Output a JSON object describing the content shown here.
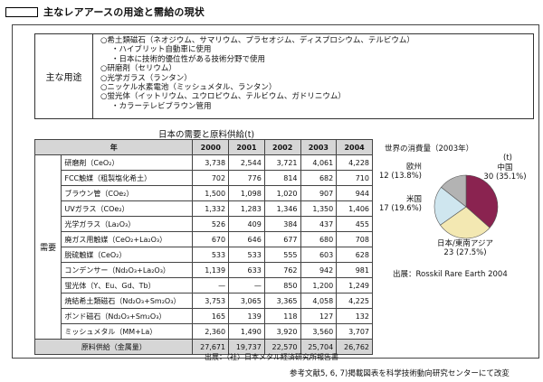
{
  "title": "主なレアアースの用途と需給の現状",
  "uses": {
    "label": "主な用途",
    "lines": [
      {
        "text": "○希土類磁石（ネオジウム、サマリウム、プラセオジム、ディスプロシウム、テルビウム）",
        "sub": false
      },
      {
        "text": "・ハイブリット自動車に使用",
        "sub": true
      },
      {
        "text": "・日本に技術的優位性がある技術分野で使用",
        "sub": true
      },
      {
        "text": "○研磨剤（セリウム）",
        "sub": false
      },
      {
        "text": "○光学ガラス（ランタン）",
        "sub": false
      },
      {
        "text": "○ニッケル水素電池（ミッシュメタル、ランタン）",
        "sub": false
      },
      {
        "text": "○蛍光体（イットリウム、ユウロピウム、テルビウム、ガドリニウム）",
        "sub": false
      },
      {
        "text": "・カラーテレビブラウン管用",
        "sub": true
      }
    ]
  },
  "table": {
    "caption": "日本の需要と原料供給(t)",
    "header_label": "年",
    "years": [
      "2000",
      "2001",
      "2002",
      "2003",
      "2004"
    ],
    "group_label": "需要",
    "rows": [
      {
        "name": "研磨剤（CeO₂）",
        "values": [
          "3,738",
          "2,544",
          "3,721",
          "4,061",
          "4,228"
        ]
      },
      {
        "name": "FCC触媒（粗製塩化希土）",
        "values": [
          "702",
          "776",
          "814",
          "682",
          "710"
        ]
      },
      {
        "name": "ブラウン管（COe₂）",
        "values": [
          "1,500",
          "1,098",
          "1,020",
          "907",
          "944"
        ]
      },
      {
        "name": "UVガラス（COe₂）",
        "values": [
          "1,332",
          "1,283",
          "1,346",
          "1,350",
          "1,406"
        ]
      },
      {
        "name": "光学ガラス（La₂O₃）",
        "values": [
          "526",
          "409",
          "384",
          "437",
          "455"
        ]
      },
      {
        "name": "廃ガス用触媒（CeO₂+La₂O₃）",
        "values": [
          "670",
          "646",
          "677",
          "680",
          "708"
        ]
      },
      {
        "name": "脱硫触媒（CeO₂）",
        "values": [
          "533",
          "533",
          "555",
          "603",
          "628"
        ]
      },
      {
        "name": "コンデンサー（Nd₂O₃+La₂O₃）",
        "values": [
          "1,139",
          "633",
          "762",
          "942",
          "981"
        ]
      },
      {
        "name": "蛍光体（Y、Eu、Gd、Tb）",
        "values": [
          "—",
          "—",
          "850",
          "1,200",
          "1,249"
        ]
      },
      {
        "name": "焼結希土類磁石（Nd₂O₃+Sm₂O₃）",
        "values": [
          "3,753",
          "3,065",
          "3,365",
          "4,058",
          "4,225"
        ]
      },
      {
        "name": "ボンド磁石（Nd₂O₃+Sm₂O₃）",
        "values": [
          "165",
          "139",
          "118",
          "127",
          "132"
        ]
      },
      {
        "name": "ミッシュメタル（MM+La）",
        "values": [
          "2,360",
          "1,490",
          "3,920",
          "3,560",
          "3,707"
        ]
      }
    ],
    "total": {
      "name": "原料供給（金属量）",
      "values": [
        "27,671",
        "19,737",
        "22,570",
        "25,704",
        "26,762"
      ]
    },
    "source": "出展：（社）日本メタル経済研究所報告書"
  },
  "chart_data": {
    "type": "pie",
    "title": "世界の消費量（2003年）",
    "unit": "(t)",
    "slices": [
      {
        "name": "中国",
        "value": 30,
        "percent": 35.1,
        "label_value": "30 (35.1%)",
        "color": "#8a2350"
      },
      {
        "name": "日本/東南アジア",
        "value": 23,
        "percent": 27.5,
        "label_value": "23 (27.5%)",
        "color": "#f3e8b2"
      },
      {
        "name": "米国",
        "value": 17,
        "percent": 19.6,
        "label_value": "17 (19.6%)",
        "color": "#cfe6ef"
      },
      {
        "name": "欧州",
        "value": 12,
        "percent": 13.8,
        "label_value": "12 (13.8%)",
        "color": "#b3b3b3"
      }
    ],
    "source": "出展：Rosskil Rare Earth 2004"
  },
  "footer": "参考文献5, 6, 7)掲載図表を科学技術動向研究センターにて改変"
}
